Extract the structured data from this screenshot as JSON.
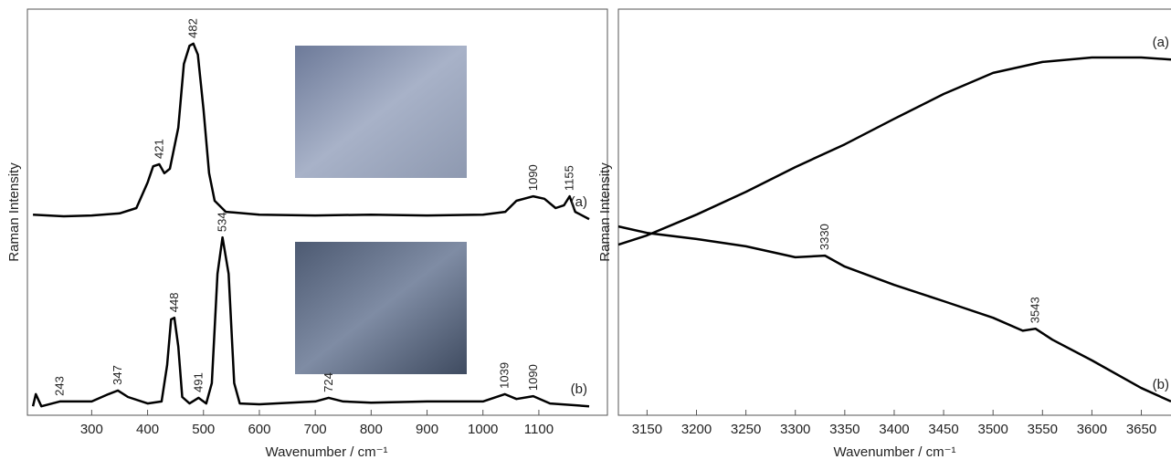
{
  "chart_data": [
    {
      "type": "line",
      "xlabel": "Wavenumber / cm⁻¹",
      "ylabel": "Raman Intensity",
      "xlim": [
        185,
        1190
      ],
      "ylim": [
        0,
        100
      ],
      "xticks": [
        300,
        400,
        500,
        600,
        700,
        800,
        900,
        1000,
        1100
      ],
      "series": [
        {
          "name": "(a)",
          "color": "#000000",
          "x": [
            195,
            250,
            300,
            350,
            380,
            400,
            410,
            421,
            430,
            440,
            455,
            465,
            475,
            482,
            490,
            500,
            510,
            520,
            540,
            600,
            700,
            800,
            900,
            1000,
            1040,
            1060,
            1090,
            1110,
            1130,
            1145,
            1155,
            1165,
            1190
          ],
          "values": [
            49.4,
            49.0,
            49.2,
            49.7,
            51.0,
            57.3,
            61.3,
            61.8,
            59.6,
            60.7,
            70.8,
            86.5,
            91.0,
            91.5,
            88.8,
            75.3,
            59.6,
            52.8,
            50.1,
            49.4,
            49.2,
            49.4,
            49.2,
            49.4,
            50.1,
            52.8,
            53.9,
            53.3,
            51.0,
            51.7,
            53.9,
            50.1,
            48.3
          ],
          "peaks": [
            421,
            482,
            1090,
            1155
          ]
        },
        {
          "name": "(b)",
          "color": "#000000",
          "x": [
            195,
            200,
            210,
            243,
            300,
            330,
            347,
            365,
            400,
            425,
            435,
            442,
            448,
            455,
            462,
            475,
            491,
            505,
            515,
            525,
            534,
            545,
            555,
            565,
            600,
            700,
            724,
            750,
            800,
            900,
            1000,
            1039,
            1060,
            1090,
            1120,
            1190
          ],
          "values": [
            2.2,
            5.2,
            2.2,
            3.4,
            3.4,
            5.2,
            6.1,
            4.5,
            2.9,
            3.4,
            12.4,
            23.6,
            24.0,
            16.9,
            4.5,
            2.9,
            4.3,
            2.9,
            7.9,
            34.8,
            43.8,
            34.8,
            7.9,
            2.9,
            2.7,
            3.4,
            4.3,
            3.4,
            3.1,
            3.4,
            3.4,
            5.2,
            4.0,
            4.7,
            2.9,
            2.2
          ],
          "peaks": [
            243,
            347,
            448,
            491,
            534,
            724,
            1039,
            1090
          ]
        }
      ]
    },
    {
      "type": "line",
      "xlabel": "Wavenumber / cm⁻¹",
      "ylabel": "Raman Intensity",
      "xlim": [
        3121,
        3680
      ],
      "ylim": [
        0,
        100
      ],
      "xticks": [
        3150,
        3200,
        3250,
        3300,
        3350,
        3400,
        3450,
        3500,
        3550,
        3600,
        3650
      ],
      "series": [
        {
          "name": "(a)",
          "color": "#000000",
          "x": [
            3121,
            3150,
            3200,
            3250,
            3300,
            3350,
            3400,
            3450,
            3500,
            3550,
            3600,
            3650,
            3680
          ],
          "values": [
            42.0,
            44.3,
            49.4,
            55.0,
            61.1,
            66.7,
            73.0,
            79.1,
            84.3,
            87.0,
            88.1,
            88.1,
            87.6
          ],
          "peaks": []
        },
        {
          "name": "(b)",
          "color": "#000000",
          "x": [
            3121,
            3150,
            3200,
            3250,
            3300,
            3330,
            3350,
            3400,
            3450,
            3500,
            3530,
            3543,
            3560,
            3600,
            3650,
            3680
          ],
          "values": [
            46.5,
            44.9,
            43.4,
            41.6,
            38.9,
            39.3,
            36.6,
            32.1,
            28.1,
            24.0,
            20.8,
            21.3,
            18.6,
            13.5,
            6.7,
            3.4
          ],
          "peaks": [
            3330,
            3543
          ]
        }
      ]
    }
  ]
}
